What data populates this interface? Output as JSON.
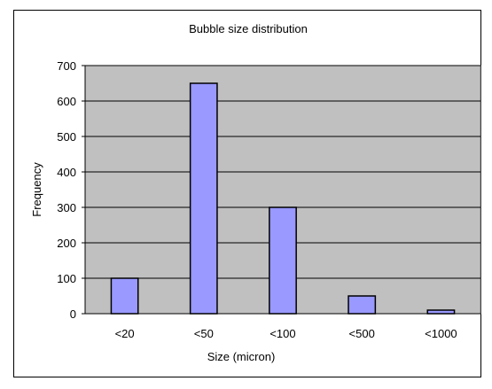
{
  "chart_data": {
    "type": "bar",
    "title": "Bubble size distribution",
    "xlabel": "Size (micron)",
    "ylabel": "Frequency",
    "categories": [
      "<20",
      "<50",
      "<100",
      "<500",
      "<1000"
    ],
    "values": [
      100,
      650,
      300,
      50,
      10
    ],
    "ylim": [
      0,
      700
    ],
    "yticks": [
      0,
      100,
      200,
      300,
      400,
      500,
      600,
      700
    ],
    "grid": true,
    "legend": "none"
  },
  "colors": {
    "plot_background": "#c0c0c0",
    "bar_fill": "#9999ff",
    "bar_stroke": "#000000",
    "gridline": "#000000"
  }
}
